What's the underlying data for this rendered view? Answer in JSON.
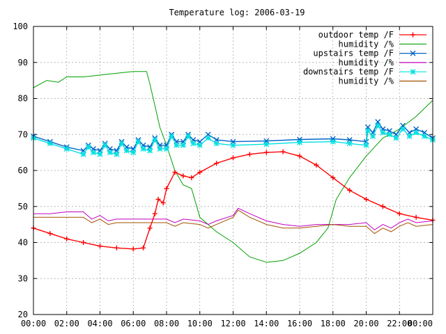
{
  "chart_data": {
    "type": "line",
    "title": "Temperature log: 2006-03-19",
    "xlabel": "",
    "ylabel": "",
    "xlim": [
      0,
      24
    ],
    "ylim": [
      20,
      100
    ],
    "grid": true,
    "legend_position": "top-right",
    "x_ticks": [
      {
        "value": 0,
        "label": "00:00"
      },
      {
        "value": 2,
        "label": "02:00"
      },
      {
        "value": 4,
        "label": "04:00"
      },
      {
        "value": 6,
        "label": "06:00"
      },
      {
        "value": 8,
        "label": "08:00"
      },
      {
        "value": 10,
        "label": "10:00"
      },
      {
        "value": 12,
        "label": "12:00"
      },
      {
        "value": 14,
        "label": "14:00"
      },
      {
        "value": 16,
        "label": "16:00"
      },
      {
        "value": 18,
        "label": "18:00"
      },
      {
        "value": 20,
        "label": "20:00"
      },
      {
        "value": 22,
        "label": "22:00"
      },
      {
        "value": 24,
        "label": "00:00"
      }
    ],
    "y_ticks": [
      {
        "value": 20,
        "label": "20"
      },
      {
        "value": 30,
        "label": "30"
      },
      {
        "value": 40,
        "label": "40"
      },
      {
        "value": 50,
        "label": "50"
      },
      {
        "value": 60,
        "label": "60"
      },
      {
        "value": 70,
        "label": "70"
      },
      {
        "value": 80,
        "label": "80"
      },
      {
        "value": 90,
        "label": "90"
      },
      {
        "value": 100,
        "label": "100"
      }
    ],
    "series": [
      {
        "name": "outdoor temp /F",
        "color": "#ff0000",
        "marker": "plus",
        "x": [
          0,
          1,
          2,
          3,
          4,
          5,
          6,
          6.6,
          7.0,
          7.3,
          7.5,
          7.8,
          8.0,
          8.5,
          9.0,
          9.5,
          10,
          11,
          12,
          13,
          14,
          15,
          16,
          17,
          18,
          19,
          20,
          21,
          22,
          23,
          24
        ],
        "y": [
          44,
          42.5,
          41,
          40,
          39,
          38.5,
          38.2,
          38.5,
          44,
          48,
          52,
          51,
          55,
          59.5,
          58.5,
          58,
          59.5,
          62,
          63.5,
          64.5,
          65,
          65.2,
          64,
          61.5,
          58,
          54.5,
          52,
          50,
          48,
          47,
          46.2
        ]
      },
      {
        "name": "humidity /%",
        "color": "#00a000",
        "marker": "none",
        "x": [
          0,
          0.8,
          1.5,
          2,
          3,
          4,
          5,
          6,
          6.8,
          7.0,
          7.3,
          7.6,
          8.0,
          8.5,
          9.0,
          9.5,
          10,
          11,
          12,
          13,
          14,
          15,
          16,
          17,
          17.7,
          18.2,
          19,
          20,
          21,
          22,
          23,
          24
        ],
        "y": [
          83,
          85,
          84.5,
          86,
          86,
          86.5,
          87,
          87.5,
          87.5,
          84,
          78,
          72,
          67,
          60,
          56,
          55,
          47,
          43,
          40,
          36,
          34.5,
          35,
          37,
          40,
          44,
          52,
          58,
          64,
          69,
          71.5,
          75,
          79.5
        ]
      },
      {
        "name": "upstairs temp /F",
        "color": "#0064c8",
        "marker": "cross",
        "x": [
          0,
          1,
          2,
          3,
          3.3,
          3.6,
          4,
          4.3,
          4.6,
          5,
          5.3,
          5.6,
          6,
          6.3,
          6.6,
          7,
          7.3,
          7.6,
          8,
          8.3,
          8.6,
          9,
          9.3,
          9.6,
          10,
          10.5,
          11,
          12,
          14,
          16,
          18,
          19,
          20,
          20.1,
          20.4,
          20.7,
          21,
          21.4,
          21.8,
          22.2,
          22.6,
          23,
          23.5,
          24
        ],
        "y": [
          69.5,
          68,
          66.5,
          65.5,
          67,
          66,
          65.5,
          67.5,
          66,
          65.5,
          68,
          66.5,
          66,
          68.5,
          67,
          66.5,
          69,
          67,
          67,
          70,
          68,
          68,
          70,
          68.5,
          68,
          70,
          68.5,
          68,
          68.2,
          68.6,
          68.8,
          68.5,
          68,
          72,
          70.5,
          73.5,
          71.5,
          71,
          70,
          72.5,
          70.5,
          71.5,
          70.5,
          69
        ]
      },
      {
        "name": "humidity /%",
        "color": "#c000c0",
        "marker": "none",
        "x": [
          0,
          1,
          2,
          3,
          3.5,
          4,
          4.5,
          5,
          6,
          7,
          8,
          8.5,
          9,
          10,
          10.5,
          11,
          12,
          12.3,
          13,
          14,
          15,
          16,
          17,
          18,
          19,
          20,
          20.5,
          21,
          21.5,
          22,
          22.5,
          23,
          24
        ],
        "y": [
          48,
          48,
          48.5,
          48.5,
          46.5,
          47.5,
          46,
          46.5,
          46.5,
          46.5,
          46.5,
          45.5,
          46.5,
          46,
          45,
          46,
          47.5,
          49.5,
          48,
          46,
          45,
          44.5,
          45,
          45,
          45,
          45.5,
          43.5,
          45,
          44,
          45.5,
          46.5,
          45.5,
          46
        ]
      },
      {
        "name": "downstairs temp /F",
        "color": "#00e0e0",
        "marker": "star",
        "x": [
          0,
          1,
          2,
          3,
          3.3,
          3.6,
          4,
          4.3,
          4.6,
          5,
          5.3,
          5.6,
          6,
          6.3,
          6.6,
          7,
          7.3,
          7.6,
          8,
          8.3,
          8.6,
          9,
          9.3,
          9.6,
          10,
          10.5,
          11,
          12,
          14,
          16,
          18,
          19,
          20,
          20.1,
          20.4,
          20.7,
          21,
          21.4,
          21.8,
          22.2,
          22.6,
          23,
          23.5,
          24
        ],
        "y": [
          69,
          67.5,
          66,
          64.5,
          66.5,
          65,
          64.5,
          67,
          65,
          64.5,
          67.5,
          65.5,
          65,
          68,
          66,
          65.5,
          68.5,
          66,
          66,
          69.5,
          67,
          67,
          69.5,
          67.5,
          67,
          69,
          67.5,
          67,
          67.3,
          67.8,
          68,
          67.5,
          67,
          71,
          69.5,
          72.5,
          70.5,
          70,
          69,
          71.5,
          69.5,
          70.5,
          69.5,
          68.5
        ]
      },
      {
        "name": "humidity /%",
        "color": "#a05000",
        "marker": "none",
        "x": [
          0,
          1,
          2,
          3,
          3.5,
          4,
          4.5,
          5,
          6,
          7,
          8,
          8.5,
          9,
          10,
          10.5,
          11,
          12,
          12.3,
          13,
          14,
          15,
          16,
          17,
          18,
          19,
          20,
          20.5,
          21,
          21.5,
          22,
          22.5,
          23,
          24
        ],
        "y": [
          47,
          47,
          47,
          47,
          45.5,
          46.5,
          45,
          45.5,
          45.5,
          45.5,
          45.5,
          44.5,
          45.5,
          45,
          44,
          45,
          47,
          49,
          47,
          45,
          44,
          44,
          44.5,
          45,
          44.5,
          44.5,
          42.5,
          44,
          43,
          44.5,
          45.5,
          44.5,
          45
        ]
      }
    ]
  }
}
